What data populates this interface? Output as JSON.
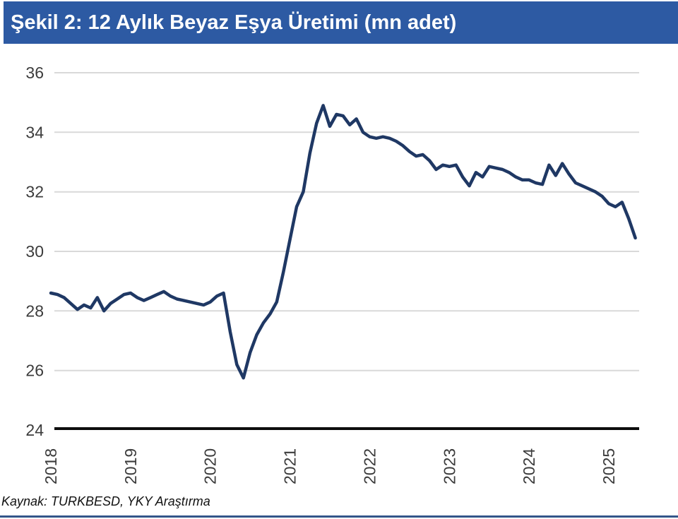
{
  "header": {
    "title": "Şekil 2: 12 Aylık Beyaz Eşya Üretimi (mn adet)"
  },
  "footer": {
    "source": "Kaynak: TURKBESD, YKY Araştırma"
  },
  "colors": {
    "header_bg": "#2d5aa3",
    "header_text": "#ffffff",
    "line": "#1f3864",
    "gridline": "#d9d9d9",
    "axis": "#0d0d0d",
    "tick_text": "#3c3c3c",
    "bottom_rule": "#33568a"
  },
  "chart_data": {
    "type": "line",
    "title": "12 Aylık Beyaz Eşya Üretimi (mn adet)",
    "unit": "mn adet",
    "xlabel": "",
    "ylabel": "",
    "ylim": [
      24,
      36
    ],
    "y_ticks": [
      24,
      26,
      28,
      30,
      32,
      34,
      36
    ],
    "x_tick_labels": [
      "2018",
      "2019",
      "2020",
      "2021",
      "2022",
      "2023",
      "2024",
      "2025"
    ],
    "x_tick_rotation": -90,
    "grid": "horizontal",
    "legend": "none",
    "series": [
      {
        "name": "12 aylık beyaz eşya üretimi",
        "frequency": "monthly",
        "start": "2018-01",
        "end": "2025-05",
        "values": [
          28.6,
          28.55,
          28.45,
          28.25,
          28.05,
          28.2,
          28.1,
          28.45,
          28.0,
          28.25,
          28.4,
          28.55,
          28.6,
          28.45,
          28.35,
          28.45,
          28.55,
          28.65,
          28.5,
          28.4,
          28.35,
          28.3,
          28.25,
          28.2,
          28.3,
          28.5,
          28.6,
          27.3,
          26.2,
          25.75,
          26.6,
          27.2,
          27.6,
          27.9,
          28.3,
          29.3,
          30.4,
          31.5,
          32.0,
          33.3,
          34.3,
          34.9,
          34.2,
          34.6,
          34.55,
          34.25,
          34.45,
          34.0,
          33.85,
          33.8,
          33.85,
          33.8,
          33.7,
          33.55,
          33.35,
          33.2,
          33.25,
          33.05,
          32.75,
          32.9,
          32.85,
          32.9,
          32.5,
          32.2,
          32.65,
          32.5,
          32.85,
          32.8,
          32.75,
          32.65,
          32.5,
          32.4,
          32.4,
          32.3,
          32.25,
          32.9,
          32.55,
          32.95,
          32.6,
          32.3,
          32.2,
          32.1,
          32.0,
          31.85,
          31.6,
          31.5,
          31.65,
          31.1,
          30.45
        ]
      }
    ]
  }
}
